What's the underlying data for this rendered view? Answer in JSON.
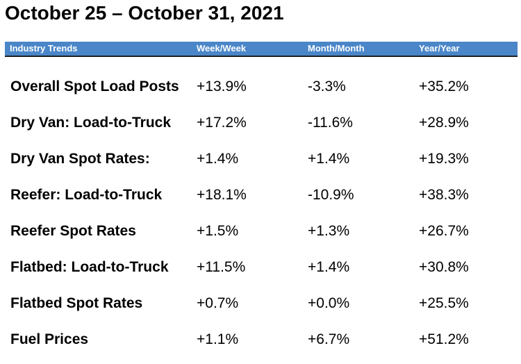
{
  "title": "October 25 – October 31, 2021",
  "table": {
    "headers": {
      "label": "Industry Trends",
      "week": "Week/Week",
      "month": "Month/Month",
      "year": "Year/Year"
    },
    "rows": [
      {
        "label": "Overall Spot Load Posts",
        "week": "+13.9%",
        "month": "-3.3%",
        "year": "+35.2%"
      },
      {
        "label": "Dry Van: Load-to-Truck",
        "week": "+17.2%",
        "month": "-11.6%",
        "year": "+28.9%"
      },
      {
        "label": "Dry Van Spot Rates:",
        "week": "+1.4%",
        "month": "+1.4%",
        "year": "+19.3%"
      },
      {
        "label": "Reefer: Load-to-Truck",
        "week": "+18.1%",
        "month": "-10.9%",
        "year": "+38.3%"
      },
      {
        "label": "Reefer Spot Rates",
        "week": "+1.5%",
        "month": "+1.3%",
        "year": "+26.7%"
      },
      {
        "label": "Flatbed: Load-to-Truck",
        "week": "+11.5%",
        "month": "+1.4%",
        "year": "+30.8%"
      },
      {
        "label": "Flatbed Spot Rates",
        "week": "+0.7%",
        "month": "+0.0%",
        "year": "+25.5%"
      },
      {
        "label": "Fuel Prices",
        "week": "+1.1%",
        "month": "+6.7%",
        "year": "+51.2%"
      }
    ]
  },
  "colors": {
    "header_bg": "#4a86c8",
    "header_text": "#ffffff",
    "text": "#000000"
  }
}
